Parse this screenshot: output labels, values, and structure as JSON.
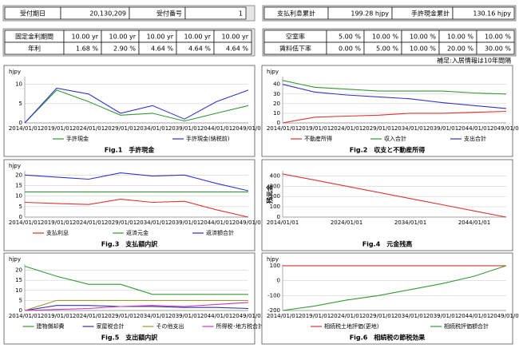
{
  "header_left": {
    "cells": [
      "受付期日",
      "20,130,209",
      "受付番号",
      "1"
    ]
  },
  "rate_table": {
    "rows": [
      [
        "固定金利期間",
        "10.00 yr",
        "10.00 yr",
        "10.00 yr",
        "10.00 yr",
        "10.00 yr"
      ],
      [
        "年利",
        "1.68 %",
        "2.90 %",
        "4.64 %",
        "4.64 %",
        "4.64 %"
      ]
    ]
  },
  "header_right": {
    "cells": [
      "支払利息累計",
      "199.28 hjpy",
      "手許現金累計",
      "130.16 hjpy"
    ]
  },
  "vacancy_table": {
    "rows": [
      [
        "空室率",
        "5.00 %",
        "10.00 %",
        "10.00 %",
        "10.00 %",
        "10.00 %"
      ],
      [
        "賃料低下率",
        "0.00 %",
        "5.00 %",
        "10.00 %",
        "20.00 %",
        "30.00 %"
      ]
    ]
  },
  "note": "補足:入居情報は10年間隔",
  "chart_data": [
    {
      "type": "line",
      "title": "Fig.1　手許現金",
      "y_label": "hjpy",
      "categories": [
        "2014/01/01",
        "2019/01/01",
        "2024/01/01",
        "2029/01/01",
        "2034/01/01",
        "2039/01/01",
        "2044/01/01",
        "2049/01/01"
      ],
      "series": [
        {
          "name": "手許現金",
          "color": "#339933",
          "values": [
            0,
            8.5,
            5.5,
            2,
            2.5,
            0.5,
            2.5,
            4.5
          ]
        },
        {
          "name": "手許現金(納税前)",
          "color": "#3333cc",
          "values": [
            0,
            9,
            7.5,
            2.5,
            4.5,
            1,
            5.5,
            8.5
          ]
        }
      ],
      "ylim": [
        0,
        12
      ],
      "yticks": [
        0,
        5,
        10
      ],
      "grid": true
    },
    {
      "type": "line",
      "title": "Fig.2　収支と不動産所得",
      "y_label": "hjpy",
      "categories": [
        "2014/01/01",
        "2019/01/01",
        "2024/01/01",
        "2029/01/01",
        "2034/01/01",
        "2039/01/01",
        "2044/01/01",
        "2049/01/01"
      ],
      "series": [
        {
          "name": "不動産所得",
          "color": "#dd3333",
          "values": [
            0,
            6,
            7,
            8,
            10,
            10,
            11,
            12
          ]
        },
        {
          "name": "収入合計",
          "color": "#339933",
          "values": [
            44,
            37,
            35,
            33,
            33,
            33,
            31,
            30
          ]
        },
        {
          "name": "支出合計",
          "color": "#3333cc",
          "values": [
            40,
            32,
            29,
            27,
            25,
            21,
            18,
            15
          ]
        }
      ],
      "ylim": [
        0,
        48
      ],
      "yticks": [
        0,
        10,
        20,
        30,
        40
      ],
      "grid": true
    },
    {
      "type": "line",
      "title": "Fig.3　支払額内訳",
      "y_label": "hjpy",
      "categories": [
        "2014/01/01",
        "2019/01/01",
        "2024/01/01",
        "2029/01/01",
        "2034/01/01",
        "2039/01/01",
        "2044/01/01",
        "2049/01/01"
      ],
      "series": [
        {
          "name": "支払利息",
          "color": "#dd3333",
          "values": [
            7,
            6.5,
            6,
            8.5,
            7,
            7.5,
            3.5,
            0
          ]
        },
        {
          "name": "返済元金",
          "color": "#339933",
          "values": [
            12,
            12,
            12,
            12,
            12,
            12,
            12,
            12
          ]
        },
        {
          "name": "返済額合計",
          "color": "#3333cc",
          "values": [
            20,
            19,
            18,
            21,
            19.5,
            20,
            16,
            12.5
          ]
        }
      ],
      "ylim": [
        0,
        22
      ],
      "yticks": [
        0,
        5,
        10,
        15,
        20
      ],
      "grid": true
    },
    {
      "type": "line",
      "title": "Fig.4　元金残高",
      "y_label": "残元金",
      "categories": [
        "2014/01/01",
        null,
        "2024/01/01",
        null,
        "2034/01/01",
        null,
        "2044/01/01",
        null
      ],
      "series": [
        {
          "color": "#dd3333",
          "values": [
            420,
            360,
            300,
            240,
            180,
            120,
            60,
            0
          ]
        }
      ],
      "ylim": [
        0,
        450
      ],
      "yticks": [
        0,
        100,
        200,
        300,
        400
      ],
      "grid": true
    },
    {
      "type": "line",
      "title": "Fig.5　支出額内訳",
      "y_label": "hjpy",
      "categories": [
        "2014/01/01",
        "2019/01/01",
        "2024/01/01",
        "2029/01/01",
        "2034/01/01",
        "2039/01/01",
        "2044/01/01",
        "2049/01/01"
      ],
      "series": [
        {
          "name": "建物償却費",
          "color": "#339933",
          "values": [
            22,
            17,
            13,
            13,
            8,
            8,
            8,
            8
          ]
        },
        {
          "name": "家屋税合計",
          "color": "#333399",
          "values": [
            0,
            2.5,
            2.5,
            2,
            2,
            1.5,
            1.5,
            1
          ]
        },
        {
          "name": "その他支出",
          "color": "#999933",
          "values": [
            0,
            5,
            5,
            5,
            5,
            5,
            5,
            5
          ]
        },
        {
          "name": "所得税･地方税合計",
          "color": "#cc33cc",
          "values": [
            0,
            0.5,
            1,
            2,
            2.5,
            2,
            3,
            4
          ]
        }
      ],
      "ylim": [
        0,
        23
      ],
      "yticks": [
        0,
        5,
        10,
        15,
        20
      ],
      "grid": true
    },
    {
      "type": "line",
      "title": "Fig.6　相続税の節税効果",
      "y_label": "hjpy",
      "categories": [
        "2014/01/01",
        "2019/01/01",
        "2024/01/01",
        "2029/01/01",
        "2034/01/01",
        "2039/01/01",
        "2044/01/01",
        "2049/01/01"
      ],
      "series": [
        {
          "name": "相続税土地評価(更地)",
          "color": "#dd3333",
          "values": [
            100,
            100,
            100,
            100,
            100,
            100,
            100,
            100
          ]
        },
        {
          "name": "相続税評価額合計",
          "color": "#339933",
          "values": [
            -200,
            -170,
            -130,
            -100,
            -60,
            -20,
            30,
            100
          ]
        }
      ],
      "ylim": [
        -200,
        110
      ],
      "yticks": [
        -200,
        -100,
        0,
        100
      ],
      "grid": true
    }
  ]
}
